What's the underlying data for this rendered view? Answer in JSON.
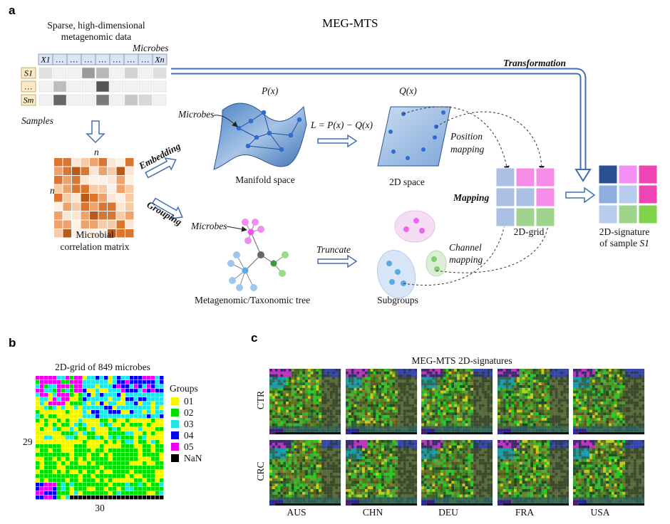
{
  "panels": {
    "a": "a",
    "b": "b",
    "c": "c"
  },
  "title": "MEG-MTS",
  "data_box": {
    "title_line1": "Sparse, high-dimensional",
    "title_line2": "metagenomic data",
    "microbes_label": "Microbes",
    "samples_label": "Samples",
    "col_headers": [
      "X1",
      "…",
      "…",
      "…",
      "…",
      "…",
      "…",
      "…",
      "Xn"
    ],
    "row_headers": [
      "S1",
      "…",
      "Sm"
    ]
  },
  "correlation": {
    "label_line1": "Microbial",
    "label_line2": "correlation matrix",
    "n_top": "n",
    "n_left": "n"
  },
  "arrows": {
    "embedding": "Embedding",
    "grouping": "Grouping",
    "truncate": "Truncate",
    "transformation": "Transformation",
    "position_line1": "Position",
    "position_line2": "mapping",
    "channel_line1": "Channel",
    "channel_line2": "mapping",
    "mapping": "Mapping"
  },
  "manifold": {
    "p_label": "P(x)",
    "microbes_label": "Microbes",
    "caption": "Manifold space",
    "loss": "L = P(x) − Q(x)"
  },
  "space2d": {
    "q_label": "Q(x)",
    "caption": "2D space"
  },
  "tree": {
    "microbes_label": "Microbes",
    "caption": "Metagenomic/Taxonomic tree"
  },
  "subgroups": {
    "caption": "Subgroups"
  },
  "grid2d": {
    "caption": "2D-grid"
  },
  "signature": {
    "caption_line1": "2D-signature",
    "caption_prefix": "of sample ",
    "caption_sample": "S1"
  },
  "panel_b": {
    "title": "2D-grid of 849 microbes",
    "row_count": "29",
    "col_count": "30",
    "legend_title": "Groups",
    "legend": [
      {
        "label": "01",
        "color": "#f5f500"
      },
      {
        "label": "02",
        "color": "#00dd00"
      },
      {
        "label": "03",
        "color": "#22e6e6"
      },
      {
        "label": "04",
        "color": "#0000ee"
      },
      {
        "label": "05",
        "color": "#ee00ee"
      },
      {
        "label": "NaN",
        "color": "#000000"
      }
    ]
  },
  "panel_c": {
    "title": "MEG-MTS 2D-signatures",
    "rows": [
      "CTR",
      "CRC"
    ],
    "cols": [
      "AUS",
      "CHN",
      "DEU",
      "FRA",
      "USA"
    ]
  }
}
